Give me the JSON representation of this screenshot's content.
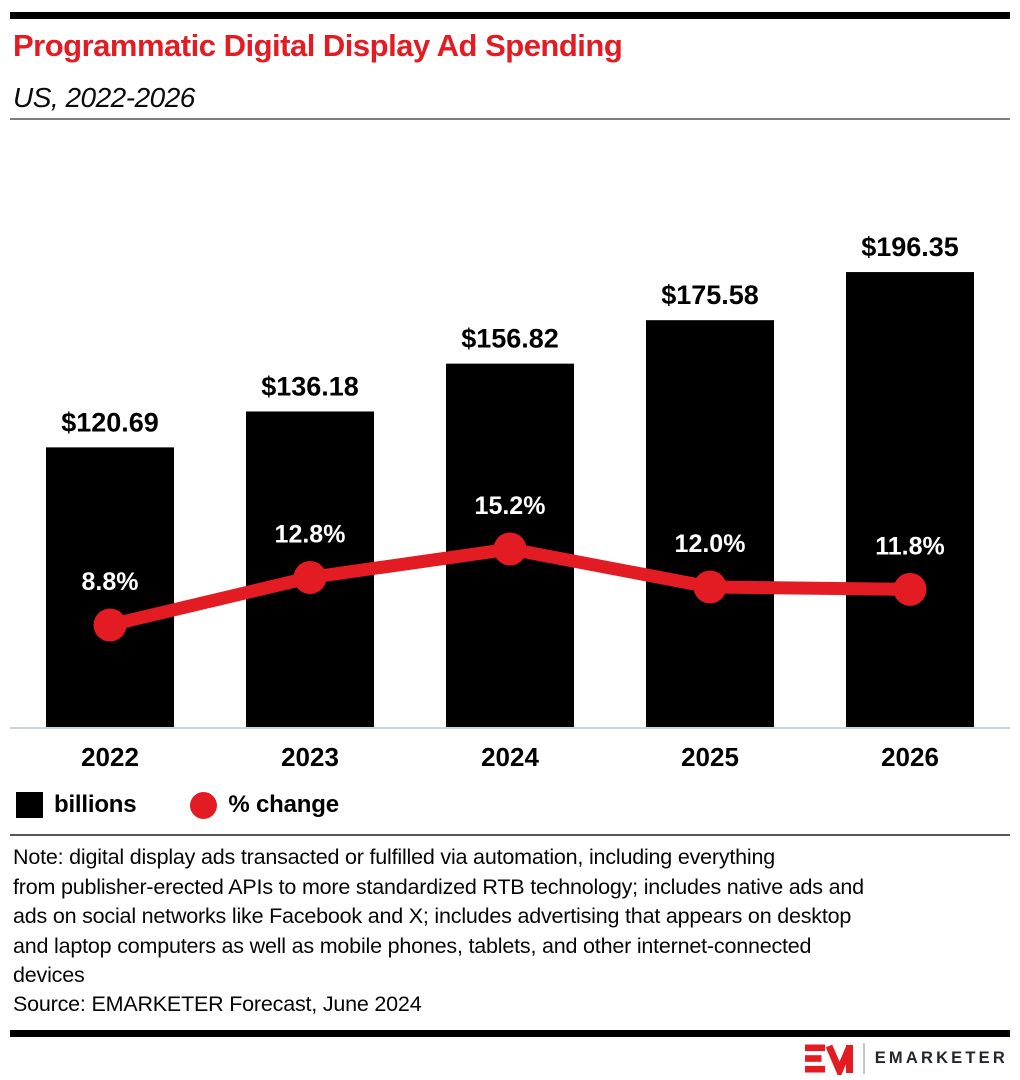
{
  "header": {
    "title": "Programmatic Digital Display Ad Spending",
    "subtitle": "US, 2022-2026"
  },
  "chart_data": {
    "type": "bar",
    "subtype": "bar-line-combo",
    "title": "Programmatic Digital Display Ad Spending",
    "subtitle": "US, 2022-2026",
    "categories": [
      "2022",
      "2023",
      "2024",
      "2025",
      "2026"
    ],
    "series": [
      {
        "name": "billions",
        "type": "bar",
        "values": [
          120.69,
          136.18,
          156.82,
          175.58,
          196.35
        ],
        "labels": [
          "$120.69",
          "$136.18",
          "$156.82",
          "$175.58",
          "$196.35"
        ],
        "color": "#000000",
        "label_color": "#000000"
      },
      {
        "name": "% change",
        "type": "line",
        "values": [
          8.8,
          12.8,
          15.2,
          12.0,
          11.8
        ],
        "labels": [
          "8.8%",
          "12.8%",
          "15.2%",
          "12.0%",
          "11.8%"
        ],
        "color": "#e31b23",
        "label_color": "#ffffff"
      }
    ],
    "xlabel": "",
    "ylabel": "",
    "grid": false,
    "y_axis_visible": false,
    "legend_position": "bottom-left",
    "accent_color": "#e31b23",
    "axis_line_color": "#ccd3df"
  },
  "legend": {
    "items": [
      {
        "label": "billions",
        "swatch": "square",
        "color": "#000000"
      },
      {
        "label": "% change",
        "swatch": "circle",
        "color": "#e31b23"
      }
    ]
  },
  "note_lines": [
    "Note: digital display ads transacted or fulfilled via automation, including everything",
    "from publisher-erected APIs to more standardized RTB technology; includes native ads and",
    "ads on social networks like Facebook and X; includes advertising that appears on desktop",
    "and laptop computers as well as mobile phones, tablets, and other internet-connected",
    "devices"
  ],
  "source": "Source: EMARKETER Forecast, June 2024",
  "footer": {
    "brand": "EMARKETER",
    "logo": "EM"
  }
}
